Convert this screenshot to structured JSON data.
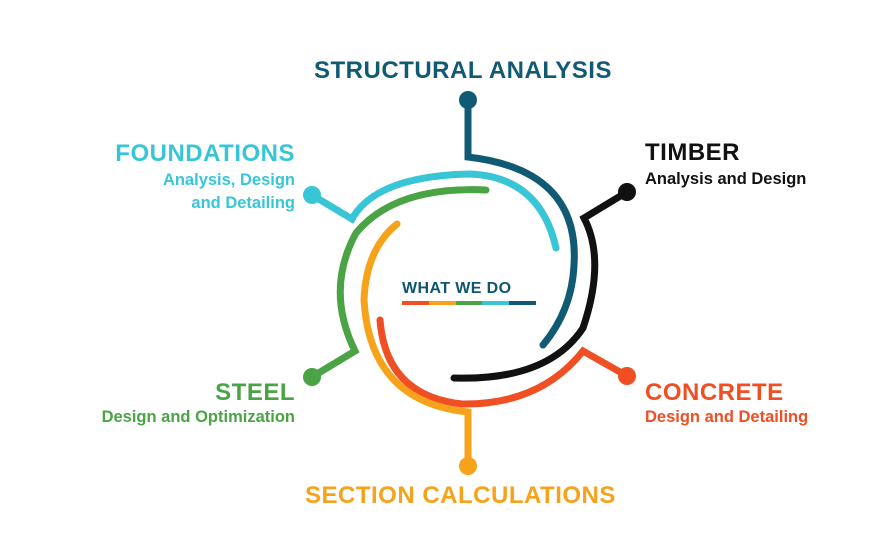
{
  "center": {
    "title": "WHAT WE DO",
    "underline_colors": [
      "#f04e23",
      "#f7a21b",
      "#4aa345",
      "#38c6d6",
      "#105a73"
    ]
  },
  "segments": [
    {
      "key": "structural",
      "title": "STRUCTURAL ANALYSIS",
      "subtitle": [],
      "color": "#105a73"
    },
    {
      "key": "timber",
      "title": "TIMBER",
      "subtitle": [
        "Analysis and Design"
      ],
      "color": "#111111"
    },
    {
      "key": "concrete",
      "title": "CONCRETE",
      "subtitle": [
        "Design and Detailing"
      ],
      "color": "#f04e23"
    },
    {
      "key": "section",
      "title": "SECTION CALCULATIONS",
      "subtitle": [],
      "color": "#f7a21b"
    },
    {
      "key": "steel",
      "title": "STEEL",
      "subtitle": [
        "Design and Optimization"
      ],
      "color": "#4aa345"
    },
    {
      "key": "foundations",
      "title": "FOUNDATIONS",
      "subtitle": [
        "Analysis, Design",
        "and Detailing"
      ],
      "color": "#38c6d6"
    }
  ]
}
